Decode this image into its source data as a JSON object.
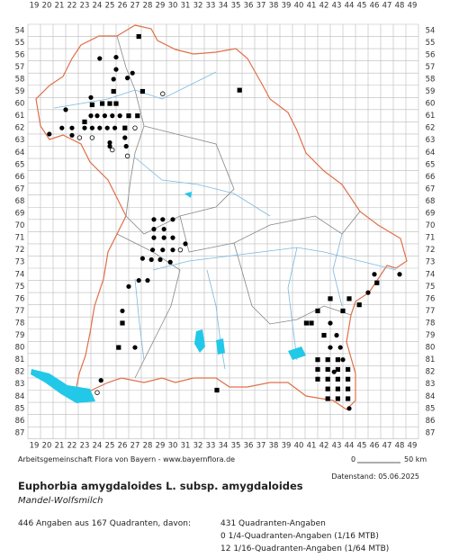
{
  "map": {
    "x_labels": [
      19,
      20,
      21,
      22,
      23,
      24,
      25,
      26,
      27,
      28,
      29,
      30,
      31,
      32,
      33,
      34,
      35,
      36,
      37,
      38,
      39,
      40,
      41,
      42,
      43,
      44,
      45,
      46,
      47,
      48,
      49
    ],
    "y_labels": [
      54,
      55,
      56,
      57,
      58,
      59,
      60,
      61,
      62,
      63,
      64,
      65,
      66,
      67,
      68,
      69,
      70,
      71,
      72,
      73,
      74,
      75,
      76,
      77,
      78,
      79,
      80,
      81,
      82,
      83,
      84,
      85,
      86,
      87
    ],
    "records": {
      "dots": [
        [
          24.2,
          56.3
        ],
        [
          25.5,
          56.2
        ],
        [
          25.5,
          57.2
        ],
        [
          26.8,
          57.5
        ],
        [
          25.3,
          58
        ],
        [
          26.4,
          57.9
        ],
        [
          23.5,
          59.5
        ],
        [
          21.5,
          60.5
        ],
        [
          23.5,
          61
        ],
        [
          24,
          61
        ],
        [
          24.6,
          61
        ],
        [
          25.2,
          61
        ],
        [
          25.8,
          61
        ],
        [
          21.2,
          62
        ],
        [
          22,
          62
        ],
        [
          23,
          62
        ],
        [
          23.6,
          62
        ],
        [
          24.2,
          62
        ],
        [
          24.8,
          62
        ],
        [
          25.4,
          62
        ],
        [
          20.2,
          62.5
        ],
        [
          22,
          62.6
        ],
        [
          25,
          63.2
        ],
        [
          26.2,
          62.8
        ],
        [
          25,
          63.5
        ],
        [
          26.3,
          63.5
        ],
        [
          28.5,
          69.5
        ],
        [
          29.2,
          69.5
        ],
        [
          30,
          69.5
        ],
        [
          28.5,
          70.3
        ],
        [
          29.3,
          70.3
        ],
        [
          28.5,
          71
        ],
        [
          29.3,
          71
        ],
        [
          30,
          71
        ],
        [
          28.4,
          72
        ],
        [
          29.2,
          72
        ],
        [
          30,
          72
        ],
        [
          31,
          71.5
        ],
        [
          28.3,
          72.8
        ],
        [
          29,
          72.8
        ],
        [
          27.6,
          72.7
        ],
        [
          29.8,
          73
        ],
        [
          26.5,
          75
        ],
        [
          27.3,
          74.5
        ],
        [
          28,
          74.5
        ],
        [
          26,
          77
        ],
        [
          27,
          80
        ],
        [
          24.3,
          82.7
        ],
        [
          42.5,
          78
        ],
        [
          43,
          79
        ],
        [
          43.3,
          80
        ],
        [
          42.5,
          80
        ],
        [
          43.5,
          81
        ],
        [
          42.8,
          82
        ],
        [
          44,
          85
        ],
        [
          46,
          74
        ],
        [
          48,
          74
        ],
        [
          45.5,
          75.5
        ]
      ],
      "squares": [
        [
          27.3,
          54.5
        ],
        [
          25.3,
          59
        ],
        [
          27.6,
          59
        ],
        [
          35.3,
          58.9
        ],
        [
          23.6,
          60.1
        ],
        [
          24.4,
          60
        ],
        [
          25,
          60
        ],
        [
          25.5,
          60
        ],
        [
          26.5,
          61
        ],
        [
          27.2,
          61
        ],
        [
          23,
          61.5
        ],
        [
          26.2,
          62
        ],
        [
          26,
          78
        ],
        [
          25.7,
          80
        ],
        [
          33.5,
          83.5
        ],
        [
          42.5,
          76
        ],
        [
          44,
          76
        ],
        [
          43.5,
          77
        ],
        [
          41.5,
          77
        ],
        [
          41,
          78
        ],
        [
          40.6,
          78
        ],
        [
          42,
          79
        ],
        [
          46.2,
          74.7
        ],
        [
          44.8,
          76.5
        ],
        [
          41.5,
          81
        ],
        [
          42.3,
          81
        ],
        [
          43.1,
          81
        ],
        [
          41.5,
          81.8
        ],
        [
          42.3,
          81.8
        ],
        [
          43.1,
          81.8
        ],
        [
          43.9,
          81.8
        ],
        [
          41.5,
          82.6
        ],
        [
          42.3,
          82.6
        ],
        [
          43.1,
          82.6
        ],
        [
          43.9,
          82.6
        ],
        [
          42.3,
          83.4
        ],
        [
          43.1,
          83.4
        ],
        [
          43.9,
          83.4
        ],
        [
          42.3,
          84.2
        ],
        [
          43.1,
          84.2
        ],
        [
          43.9,
          84.2
        ]
      ],
      "open": [
        [
          29.2,
          59.2
        ],
        [
          27,
          62
        ],
        [
          22.6,
          62.8
        ],
        [
          23.6,
          62.8
        ],
        [
          25.2,
          63.8
        ],
        [
          26.4,
          64.3
        ],
        [
          24,
          83.7
        ],
        [
          30.6,
          72
        ]
      ]
    },
    "footer": "Arbeitsgemeinschaft Flora von Bayern - www.bayernflora.de",
    "scale_start": "0",
    "scale_end": "50 km",
    "date": "Datenstand: 05.06.2025",
    "title": "Euphorbia amygdaloides L. subsp. amygdaloides",
    "subtitle": "Mandel-Wolfsmilch",
    "stats": {
      "summary": "446 Angaben aus 167 Quadranten, davon:",
      "lines": [
        "431 Quadranten-Angaben",
        "0 1/4-Quadranten-Angaben (1/16 MTB)",
        "12 1/16-Quadranten-Angaben (1/64 MTB)"
      ]
    }
  }
}
